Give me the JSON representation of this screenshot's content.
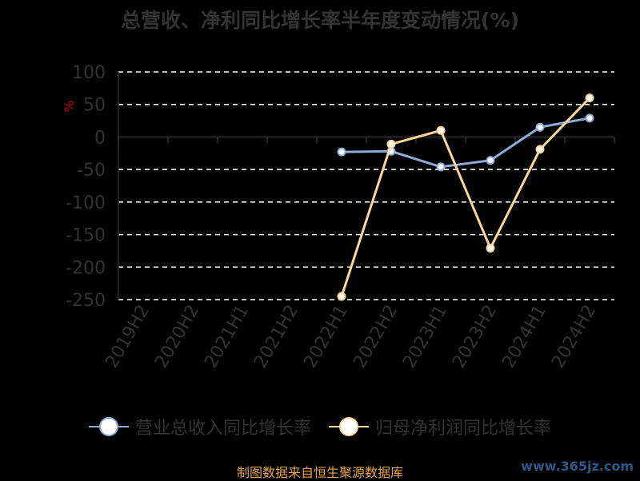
{
  "chart_data": {
    "type": "line",
    "title": "总营收、净利同比增长率半年度变动情况(%)",
    "ylabel": "%",
    "categories": [
      "2019H2",
      "2020H2",
      "2021H1",
      "2021H2",
      "2022H1",
      "2022H2",
      "2023H1",
      "2023H2",
      "2024H1",
      "2024H2"
    ],
    "ylim": [
      -250,
      100
    ],
    "yticks": [
      100,
      50,
      0,
      -50,
      -100,
      -150,
      -200,
      -250
    ],
    "grid": true,
    "legend_position": "bottom",
    "series": [
      {
        "name": "营业总收入同比增长率",
        "color": "#8eaadb",
        "values": [
          null,
          null,
          null,
          null,
          -23,
          -22,
          -46,
          -36,
          15,
          29
        ]
      },
      {
        "name": "归母净利润同比增长率",
        "color": "#ffd699",
        "values": [
          null,
          null,
          null,
          null,
          -245,
          -11,
          10,
          -171,
          -19,
          60
        ]
      }
    ]
  },
  "source_text": "制图数据来自恒生聚源数据库",
  "watermark_text": "www.365jz.com"
}
